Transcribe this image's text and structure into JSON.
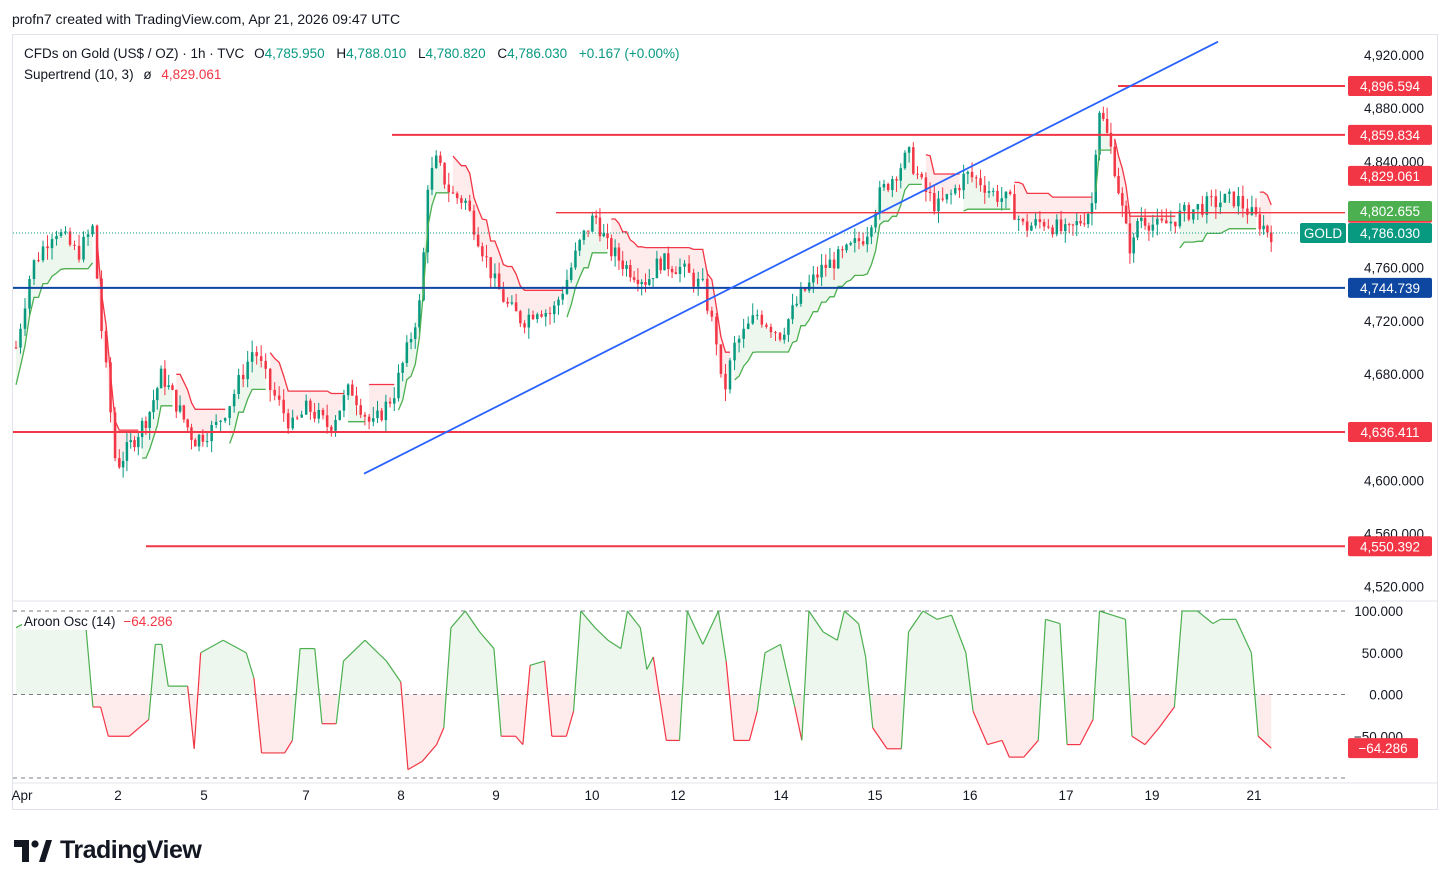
{
  "header": {
    "text": "profn7 created with TradingView.com, Apr 21, 2026 09:47 UTC"
  },
  "legend": {
    "symbol": "CFDs on Gold (US$ / OZ) · 1h · TVC",
    "o_label": "O",
    "o": "4,785.950",
    "h_label": "H",
    "h": "4,788.010",
    "l_label": "L",
    "l": "4,780.820",
    "c_label": "C",
    "c": "4,786.030",
    "change": "+0.167 (+0.00%)",
    "supertrend_label": "Supertrend (10, 3)",
    "supertrend_symbol": "ø",
    "supertrend_value": "4,829.061"
  },
  "oscillator": {
    "label": "Aroon Osc (14)",
    "value": "−64.286",
    "badge": "−64.286"
  },
  "footer": {
    "brand": "TradingView"
  },
  "colors": {
    "up": "#089981",
    "down": "#f23645",
    "trendline": "#2962ff",
    "support": "#0d47a1",
    "level": "#f23645",
    "supertrend_up": "#4caf50"
  },
  "chart_data": {
    "type": "candlestick",
    "title": "CFDs on Gold (US$ / OZ) · 1h · TVC",
    "y_axis": {
      "range": [
        4510,
        4935
      ],
      "ticks": [
        4920,
        4880,
        4840,
        4800,
        4760,
        4720,
        4680,
        4640,
        4600,
        4560,
        4520
      ],
      "tick_labels": [
        "4,920.000",
        "4,880.000",
        "4,840.000",
        "4,800.000",
        "4,760.000",
        "4,720.000",
        "4,680.000",
        "4,640.000",
        "4,600.000",
        "4,560.000",
        "4,520.000"
      ]
    },
    "x_axis": {
      "labels": [
        "Apr",
        "2",
        "5",
        "7",
        "8",
        "9",
        "10",
        "12",
        "14",
        "15",
        "16",
        "17",
        "19",
        "21"
      ]
    },
    "horizontal_levels": [
      {
        "value": 4896.594,
        "label": "4,896.594",
        "kind": "resistance"
      },
      {
        "value": 4859.834,
        "label": "4,859.834",
        "kind": "resistance"
      },
      {
        "value": 4801.323,
        "label": "4,801.323",
        "kind": "resistance"
      },
      {
        "value": 4744.739,
        "label": "4,744.739",
        "kind": "support"
      },
      {
        "value": 4636.411,
        "label": "4,636.411",
        "kind": "support"
      },
      {
        "value": 4550.392,
        "label": "4,550.392",
        "kind": "support"
      }
    ],
    "price_badges": [
      {
        "value": 4829.061,
        "label": "4,829.061",
        "kind": "supertrend"
      },
      {
        "value": 4802.655,
        "label": "4,802.655",
        "kind": "supertrend_up"
      },
      {
        "value": 4786.03,
        "label": "4,786.030",
        "kind": "last",
        "tag": "GOLD"
      }
    ],
    "trendline": {
      "from": {
        "date": "Apr 7",
        "price": 4605
      },
      "to": {
        "date": "Apr 19",
        "price": 4930
      }
    },
    "close_path": [
      [
        1.0,
        4700
      ],
      [
        1.2,
        4760
      ],
      [
        1.5,
        4790
      ],
      [
        1.8,
        4770
      ],
      [
        2.0,
        4790
      ],
      [
        2.1,
        4720
      ],
      [
        2.25,
        4640
      ],
      [
        2.3,
        4610
      ],
      [
        2.5,
        4625
      ],
      [
        2.8,
        4650
      ],
      [
        3.0,
        4680
      ],
      [
        3.2,
        4660
      ],
      [
        3.5,
        4630
      ],
      [
        3.8,
        4640
      ],
      [
        4.0,
        4660
      ],
      [
        4.3,
        4700
      ],
      [
        4.5,
        4670
      ],
      [
        4.8,
        4640
      ],
      [
        5.0,
        4655
      ],
      [
        5.3,
        4640
      ],
      [
        5.6,
        4670
      ],
      [
        5.9,
        4640
      ],
      [
        6.2,
        4665
      ],
      [
        6.4,
        4700
      ],
      [
        6.6,
        4740
      ],
      [
        6.65,
        4820
      ],
      [
        6.8,
        4840
      ],
      [
        7.0,
        4815
      ],
      [
        7.2,
        4810
      ],
      [
        7.4,
        4780
      ],
      [
        7.6,
        4750
      ],
      [
        7.8,
        4730
      ],
      [
        8.0,
        4720
      ],
      [
        8.2,
        4730
      ],
      [
        8.4,
        4725
      ],
      [
        8.6,
        4750
      ],
      [
        8.8,
        4780
      ],
      [
        9.0,
        4800
      ],
      [
        9.2,
        4775
      ],
      [
        9.5,
        4760
      ],
      [
        9.8,
        4750
      ],
      [
        10.0,
        4765
      ],
      [
        10.3,
        4760
      ],
      [
        10.6,
        4745
      ],
      [
        10.8,
        4700
      ],
      [
        10.85,
        4660
      ],
      [
        11.0,
        4700
      ],
      [
        11.3,
        4725
      ],
      [
        11.6,
        4710
      ],
      [
        11.9,
        4740
      ],
      [
        12.2,
        4760
      ],
      [
        12.5,
        4770
      ],
      [
        12.8,
        4785
      ],
      [
        13.0,
        4815
      ],
      [
        13.2,
        4830
      ],
      [
        13.4,
        4845
      ],
      [
        13.6,
        4820
      ],
      [
        13.8,
        4805
      ],
      [
        14.0,
        4815
      ],
      [
        14.2,
        4830
      ],
      [
        14.4,
        4825
      ],
      [
        14.6,
        4815
      ],
      [
        14.8,
        4810
      ],
      [
        15.0,
        4790
      ],
      [
        15.3,
        4795
      ],
      [
        15.6,
        4785
      ],
      [
        15.9,
        4800
      ],
      [
        16.0,
        4810
      ],
      [
        16.05,
        4860
      ],
      [
        16.1,
        4880
      ],
      [
        16.3,
        4845
      ],
      [
        16.5,
        4790
      ],
      [
        16.6,
        4770
      ],
      [
        16.7,
        4800
      ],
      [
        17.0,
        4790
      ],
      [
        17.3,
        4800
      ],
      [
        17.5,
        4805
      ],
      [
        17.8,
        4810
      ],
      [
        18.0,
        4812
      ],
      [
        18.2,
        4800
      ],
      [
        18.4,
        4790
      ],
      [
        18.5,
        4786
      ]
    ],
    "aroon_oscillator": {
      "label": "Aroon Osc (14)",
      "current": -64.286,
      "y_ticks": [
        100,
        50,
        0,
        -50
      ],
      "y_tick_labels": [
        "100.000",
        "50.000",
        "0.000",
        "−50.000"
      ],
      "path": [
        [
          1.0,
          80
        ],
        [
          1.3,
          95
        ],
        [
          1.6,
          85
        ],
        [
          1.9,
          90
        ],
        [
          2.0,
          -15
        ],
        [
          2.1,
          -15
        ],
        [
          2.2,
          -50
        ],
        [
          2.5,
          -50
        ],
        [
          2.8,
          -30
        ],
        [
          2.9,
          60
        ],
        [
          3.0,
          60
        ],
        [
          3.1,
          10
        ],
        [
          3.4,
          10
        ],
        [
          3.5,
          -65
        ],
        [
          3.6,
          50
        ],
        [
          3.9,
          65
        ],
        [
          4.2,
          50
        ],
        [
          4.3,
          20
        ],
        [
          4.4,
          -70
        ],
        [
          4.7,
          -70
        ],
        [
          4.8,
          -55
        ],
        [
          4.9,
          55
        ],
        [
          5.1,
          55
        ],
        [
          5.2,
          -35
        ],
        [
          5.4,
          -35
        ],
        [
          5.5,
          40
        ],
        [
          5.8,
          65
        ],
        [
          6.1,
          40
        ],
        [
          6.3,
          15
        ],
        [
          6.4,
          -90
        ],
        [
          6.6,
          -80
        ],
        [
          6.8,
          -60
        ],
        [
          6.9,
          -40
        ],
        [
          7.0,
          80
        ],
        [
          7.2,
          100
        ],
        [
          7.4,
          75
        ],
        [
          7.6,
          55
        ],
        [
          7.7,
          -50
        ],
        [
          7.9,
          -50
        ],
        [
          8.0,
          -60
        ],
        [
          8.1,
          35
        ],
        [
          8.3,
          40
        ],
        [
          8.4,
          -50
        ],
        [
          8.6,
          -50
        ],
        [
          8.7,
          -20
        ],
        [
          8.8,
          100
        ],
        [
          9.0,
          80
        ],
        [
          9.2,
          65
        ],
        [
          9.4,
          55
        ],
        [
          9.5,
          100
        ],
        [
          9.7,
          80
        ],
        [
          9.8,
          30
        ],
        [
          9.9,
          45
        ],
        [
          10.1,
          -55
        ],
        [
          10.3,
          -55
        ],
        [
          10.4,
          100
        ],
        [
          10.6,
          60
        ],
        [
          10.8,
          100
        ],
        [
          10.9,
          40
        ],
        [
          11.0,
          -55
        ],
        [
          11.2,
          -55
        ],
        [
          11.3,
          -20
        ],
        [
          11.4,
          50
        ],
        [
          11.6,
          60
        ],
        [
          11.8,
          -15
        ],
        [
          11.9,
          -55
        ],
        [
          12.0,
          100
        ],
        [
          12.2,
          75
        ],
        [
          12.4,
          65
        ],
        [
          12.5,
          100
        ],
        [
          12.7,
          85
        ],
        [
          12.8,
          45
        ],
        [
          12.9,
          -40
        ],
        [
          13.1,
          -65
        ],
        [
          13.3,
          -65
        ],
        [
          13.4,
          75
        ],
        [
          13.6,
          100
        ],
        [
          13.8,
          90
        ],
        [
          14.0,
          95
        ],
        [
          14.2,
          50
        ],
        [
          14.3,
          -20
        ],
        [
          14.5,
          -60
        ],
        [
          14.7,
          -55
        ],
        [
          14.8,
          -75
        ],
        [
          15.0,
          -75
        ],
        [
          15.2,
          -55
        ],
        [
          15.3,
          90
        ],
        [
          15.5,
          85
        ],
        [
          15.6,
          -60
        ],
        [
          15.8,
          -60
        ],
        [
          16.0,
          -30
        ],
        [
          16.1,
          100
        ],
        [
          16.3,
          95
        ],
        [
          16.5,
          90
        ],
        [
          16.6,
          -50
        ],
        [
          16.8,
          -60
        ],
        [
          17.0,
          -40
        ],
        [
          17.2,
          -15
        ],
        [
          17.3,
          100
        ],
        [
          17.5,
          100
        ],
        [
          17.7,
          85
        ],
        [
          17.8,
          90
        ],
        [
          18.0,
          90
        ],
        [
          18.2,
          50
        ],
        [
          18.3,
          -50
        ],
        [
          18.5,
          -64.286
        ]
      ]
    }
  }
}
